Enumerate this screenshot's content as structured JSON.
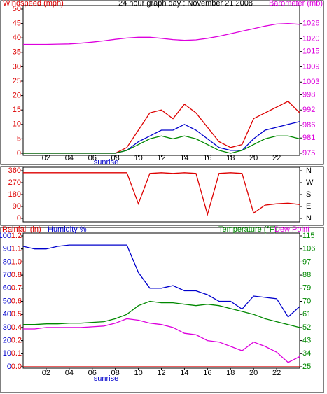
{
  "chart_data": [
    {
      "type": "line",
      "title": "24 hour graph day : November 21 2008",
      "ylabel": "Windspeed (mph)",
      "y2label": "Barometer (mb)",
      "x": [
        0,
        1,
        2,
        3,
        4,
        5,
        6,
        7,
        8,
        9,
        10,
        11,
        12,
        13,
        14,
        15,
        16,
        17,
        18,
        19,
        20,
        21,
        22,
        23,
        24
      ],
      "xlim": [
        0,
        24
      ],
      "xticks": [
        {
          "value": 2,
          "label": "02"
        },
        {
          "value": 4,
          "label": "04"
        },
        {
          "value": 6,
          "label": "06"
        },
        {
          "value": 8,
          "label": "08"
        },
        {
          "value": 10,
          "label": "10"
        },
        {
          "value": 12,
          "label": "12"
        },
        {
          "value": 14,
          "label": "14"
        },
        {
          "value": 16,
          "label": "16"
        },
        {
          "value": 18,
          "label": "18"
        },
        {
          "value": 20,
          "label": "20"
        },
        {
          "value": 22,
          "label": "22"
        }
      ],
      "ylim": [
        0,
        50
      ],
      "yticks": [
        0,
        5,
        10,
        15,
        20,
        25,
        30,
        35,
        40,
        45,
        50
      ],
      "y2lim": [
        975,
        1031.7
      ],
      "y2ticks": [
        975,
        981,
        986,
        992,
        998,
        1003,
        1009,
        1015,
        1020,
        1026
      ],
      "annotations": [
        {
          "text": "sunrise",
          "x": 7.2
        }
      ],
      "series": [
        {
          "color": "#dd0000",
          "values": [
            0,
            0,
            0,
            0,
            0,
            0,
            0,
            0,
            0,
            2,
            8,
            14,
            15,
            12,
            17,
            14,
            9,
            4,
            2,
            3,
            12,
            14,
            16,
            18,
            14
          ]
        },
        {
          "color": "#0000cc",
          "values": [
            0,
            0,
            0,
            0,
            0,
            0,
            0,
            0,
            0,
            1,
            4,
            6,
            8,
            8,
            10,
            8,
            5,
            2,
            1,
            1,
            5,
            8,
            9,
            10,
            11
          ]
        },
        {
          "color": "#008800",
          "values": [
            0,
            0,
            0,
            0,
            0,
            0,
            0,
            0,
            0,
            1,
            3,
            5,
            6,
            5,
            6,
            5,
            3,
            1,
            0,
            1,
            3,
            5,
            6,
            6,
            5
          ]
        },
        {
          "color": "#dd00dd",
          "axis": "y2",
          "values": [
            1017.8,
            1017.8,
            1017.8,
            1017.9,
            1018,
            1018.3,
            1018.7,
            1019.2,
            1019.8,
            1020.3,
            1020.6,
            1020.6,
            1020.2,
            1019.7,
            1019.4,
            1019.6,
            1020.2,
            1021,
            1022,
            1023,
            1024,
            1025,
            1025.8,
            1026,
            1025.7
          ]
        }
      ]
    },
    {
      "type": "line",
      "x": [
        0,
        1,
        2,
        3,
        4,
        5,
        6,
        7,
        8,
        9,
        10,
        11,
        12,
        13,
        14,
        15,
        16,
        17,
        18,
        19,
        20,
        21,
        22,
        23,
        24
      ],
      "xlim": [
        0,
        24
      ],
      "ylim": [
        0,
        360
      ],
      "yticks": [
        0,
        90,
        180,
        270,
        360
      ],
      "y2lim": [
        0,
        360
      ],
      "y2ticks": [
        {
          "value": 0,
          "label": "N"
        },
        {
          "value": 90,
          "label": "E"
        },
        {
          "value": 180,
          "label": "S"
        },
        {
          "value": 270,
          "label": "W"
        },
        {
          "value": 360,
          "label": "N"
        }
      ],
      "series": [
        {
          "color": "#dd0000",
          "values": [
            345,
            345,
            345,
            345,
            345,
            345,
            345,
            345,
            345,
            345,
            110,
            340,
            345,
            340,
            345,
            340,
            30,
            340,
            345,
            340,
            40,
            100,
            110,
            115,
            105
          ]
        }
      ]
    },
    {
      "type": "line",
      "x": [
        0,
        1,
        2,
        3,
        4,
        5,
        6,
        7,
        8,
        9,
        10,
        11,
        12,
        13,
        14,
        15,
        16,
        17,
        18,
        19,
        20,
        21,
        22,
        23,
        24
      ],
      "xlim": [
        0,
        24
      ],
      "xticks": [
        {
          "value": 2,
          "label": "02"
        },
        {
          "value": 4,
          "label": "04"
        },
        {
          "value": 6,
          "label": "06"
        },
        {
          "value": 8,
          "label": "08"
        },
        {
          "value": 10,
          "label": "10"
        },
        {
          "value": 12,
          "label": "12"
        },
        {
          "value": 14,
          "label": "14"
        },
        {
          "value": 16,
          "label": "16"
        },
        {
          "value": 18,
          "label": "18"
        },
        {
          "value": 20,
          "label": "20"
        },
        {
          "value": 22,
          "label": "22"
        }
      ],
      "ylim": [
        0,
        100
      ],
      "yticks": [
        0,
        10,
        20,
        30,
        40,
        50,
        60,
        70,
        80,
        90,
        100
      ],
      "y3lim": [
        0,
        1.2
      ],
      "y3ticks": [
        {
          "value": 0,
          "label": "0.0"
        },
        {
          "value": 0.12,
          "label": "0.1"
        },
        {
          "value": 0.24,
          "label": "0.2"
        },
        {
          "value": 0.36,
          "label": "0.4"
        },
        {
          "value": 0.48,
          "label": "0.5"
        },
        {
          "value": 0.6,
          "label": "0.6"
        },
        {
          "value": 0.72,
          "label": "0.7"
        },
        {
          "value": 0.84,
          "label": "0.8"
        },
        {
          "value": 0.96,
          "label": "1.0"
        },
        {
          "value": 1.08,
          "label": "1.1"
        },
        {
          "value": 1.2,
          "label": "1.2"
        }
      ],
      "y2lim": [
        25,
        115
      ],
      "y2ticks": [
        25,
        34,
        43,
        52,
        61,
        70,
        79,
        88,
        97,
        106,
        115
      ],
      "annotations": [
        {
          "text": "sunrise",
          "x": 7.2
        }
      ],
      "series": [
        {
          "name": "Rainfall (in)",
          "color": "#dd0000",
          "axis": "y3",
          "values": [
            0,
            0,
            0,
            0,
            0,
            0,
            0,
            0,
            0,
            0,
            0,
            0,
            0,
            0,
            0,
            0,
            0,
            0,
            0,
            0,
            0,
            0,
            0,
            0,
            0
          ]
        },
        {
          "name": "Humidity %",
          "color": "#0000cc",
          "values": [
            92,
            90,
            90,
            92,
            93,
            93,
            93,
            93,
            93,
            93,
            72,
            60,
            60,
            62,
            58,
            58,
            55,
            50,
            50,
            44,
            54,
            53,
            52,
            38,
            46
          ]
        },
        {
          "name": "Temperature (°F)",
          "color": "#008800",
          "axis": "y2",
          "values": [
            54,
            54,
            54.5,
            54.5,
            55,
            55,
            55.5,
            56,
            58,
            61,
            67,
            70,
            69,
            69,
            68,
            67,
            68,
            67,
            65,
            63,
            61,
            58,
            56,
            54,
            52
          ]
        },
        {
          "name": "Dew Point",
          "color": "#dd00dd",
          "axis": "y2",
          "values": [
            51,
            51,
            52,
            52,
            52,
            52,
            52.5,
            53,
            55,
            58,
            57,
            55,
            54,
            52,
            48,
            47,
            43,
            42,
            39,
            36,
            42,
            39,
            35,
            28,
            32
          ]
        }
      ]
    }
  ]
}
